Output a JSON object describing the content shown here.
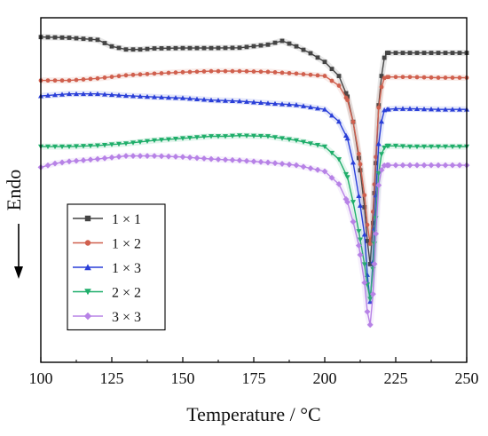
{
  "chart_data": {
    "type": "line",
    "title": "",
    "xlabel": "Temperature / °C",
    "ylabel": "Endo",
    "xlim": [
      100,
      250
    ],
    "ylim": [
      0,
      100
    ],
    "xticks": [
      "100",
      "125",
      "150",
      "175",
      "200",
      "225",
      "250"
    ],
    "yticks_shown": false,
    "grid": false,
    "legend_position": "left",
    "series": [
      {
        "name": "1 × 1",
        "color": "#444444",
        "marker": "square",
        "x": [
          100,
          110,
          120,
          125,
          130,
          135,
          140,
          150,
          160,
          170,
          180,
          185,
          190,
          195,
          200,
          205,
          208,
          210,
          212,
          214,
          215,
          216,
          217,
          218,
          219,
          220,
          221,
          222,
          225,
          230,
          240,
          250
        ],
        "y": [
          94.4,
          94.2,
          93.6,
          91.7,
          90.8,
          90.8,
          91.1,
          91.2,
          91.2,
          91.3,
          92.2,
          93.3,
          91.7,
          89.7,
          87.2,
          83.1,
          77.1,
          69.8,
          59.3,
          45.0,
          35.2,
          28.5,
          40.4,
          57.8,
          74.6,
          83.1,
          88.4,
          89.8,
          89.8,
          89.8,
          89.8,
          89.8
        ]
      },
      {
        "name": "1 × 2",
        "color": "#d0604e",
        "marker": "circle",
        "x": [
          100,
          110,
          120,
          130,
          140,
          150,
          160,
          170,
          180,
          190,
          200,
          205,
          208,
          210,
          212,
          214,
          215,
          216,
          217,
          218,
          219,
          220,
          221,
          222,
          225,
          230,
          240,
          250
        ],
        "y": [
          81.8,
          81.8,
          82.4,
          83.3,
          83.8,
          84.2,
          84.5,
          84.5,
          84.3,
          83.8,
          83.1,
          80.3,
          76.1,
          69.8,
          60.5,
          48.5,
          39.9,
          34.4,
          43.7,
          59.6,
          73.9,
          79.9,
          82.5,
          82.8,
          82.8,
          82.8,
          82.6,
          82.6
        ]
      },
      {
        "name": "1 × 3",
        "color": "#2a3fd8",
        "marker": "triangle-up",
        "x": [
          100,
          110,
          120,
          130,
          140,
          150,
          160,
          170,
          180,
          190,
          200,
          205,
          208,
          210,
          212,
          214,
          215,
          216,
          217,
          218,
          219,
          220,
          221,
          222,
          225,
          230,
          240,
          250
        ],
        "y": [
          77.3,
          77.9,
          77.9,
          77.4,
          77.0,
          76.7,
          76.1,
          75.8,
          75.2,
          74.7,
          73.4,
          69.9,
          65.0,
          58.0,
          48.3,
          37.1,
          25.4,
          17.6,
          29.3,
          48.5,
          63.4,
          69.9,
          73.2,
          73.4,
          73.6,
          73.6,
          73.4,
          73.4
        ]
      },
      {
        "name": "2 × 2",
        "color": "#1fae6a",
        "marker": "triangle-down",
        "x": [
          100,
          110,
          120,
          130,
          140,
          150,
          160,
          165,
          170,
          180,
          190,
          200,
          205,
          208,
          210,
          212,
          214,
          215,
          216,
          217,
          218,
          219,
          220,
          221,
          222,
          225,
          230,
          240,
          250
        ],
        "y": [
          62.6,
          62.6,
          62.9,
          63.5,
          64.4,
          65.0,
          65.6,
          65.6,
          65.8,
          65.6,
          64.4,
          62.6,
          58.9,
          53.7,
          46.5,
          38.0,
          28.4,
          22.5,
          18.4,
          27.0,
          41.8,
          54.8,
          60.4,
          62.3,
          62.8,
          62.8,
          62.6,
          62.6,
          62.6
        ]
      },
      {
        "name": "3 × 3",
        "color": "#b782e6",
        "marker": "diamond",
        "x": [
          100,
          105,
          110,
          120,
          130,
          140,
          150,
          160,
          170,
          180,
          190,
          200,
          205,
          208,
          210,
          212,
          214,
          215,
          216,
          217,
          218,
          219,
          220,
          221,
          222,
          225,
          230,
          240,
          250
        ],
        "y": [
          56.6,
          57.7,
          58.3,
          59.0,
          59.9,
          59.9,
          59.6,
          59.0,
          58.6,
          58.0,
          57.2,
          55.4,
          51.7,
          46.5,
          40.8,
          33.9,
          23.1,
          14.7,
          10.9,
          19.8,
          37.3,
          51.4,
          55.8,
          57.1,
          57.2,
          57.2,
          57.2,
          57.2,
          57.2
        ]
      }
    ]
  }
}
